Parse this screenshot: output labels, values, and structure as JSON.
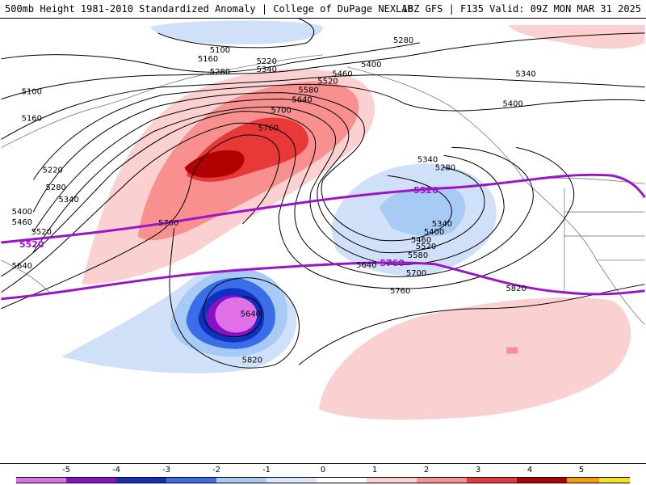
{
  "title": {
    "left": "500mb Height 1981-2010 Standardized Anomaly | College of DuPage NEXLAB",
    "right": "18Z GFS | F135 Valid: 09Z MON MAR 31 2025"
  },
  "contour_labels": [
    "5100",
    "5160",
    "5220",
    "5280",
    "5340",
    "5400",
    "5460",
    "5520",
    "5580",
    "5640",
    "5700",
    "5760",
    "5820"
  ],
  "highlight_labels": [
    "5520",
    "5760"
  ],
  "colorbar": {
    "ticks": [
      "-5",
      "-4",
      "-3",
      "-2",
      "-1",
      "0",
      "1",
      "2",
      "3",
      "4",
      "5"
    ],
    "colors": [
      "#e070e8",
      "#8a10c8",
      "#1030c0",
      "#3a6ee8",
      "#a8cbf5",
      "#dde9fb",
      "#ffffff",
      "#fbd0d0",
      "#f89090",
      "#e83838",
      "#b00000",
      "#f5a000",
      "#f8e020"
    ]
  }
}
